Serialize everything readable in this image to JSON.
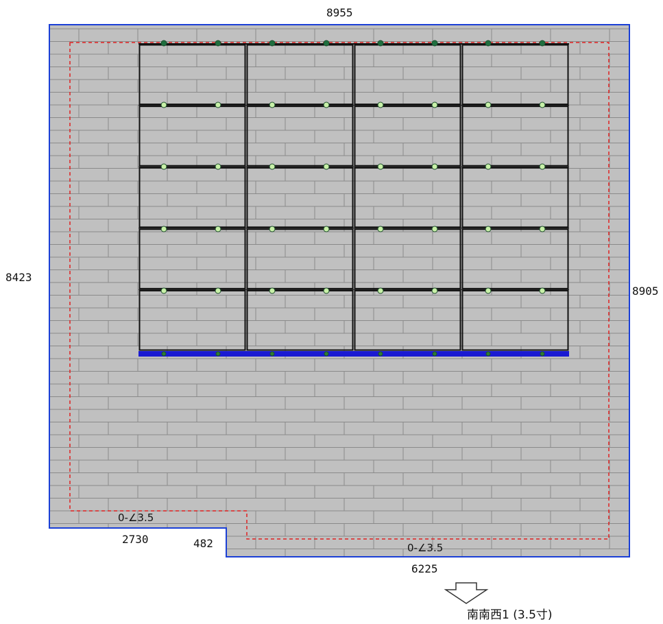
{
  "colors": {
    "roof_fill": "#c0c0c0",
    "tile_line": "#8a8a8a",
    "roof_outline": "#1a3fd6",
    "eave_line": "#e02020",
    "panel_frame": "#111111",
    "rail": "#1a1ad2",
    "bolt_top": "#1f6f3f",
    "bolt_light": "#c8f0a8"
  },
  "dimensions": {
    "top": "8955",
    "left": "8423",
    "right": "8905",
    "bottom_left": "2730",
    "step": "482",
    "bottom_right": "6225"
  },
  "slopes": {
    "left": "0-∠3.5",
    "right": "0-∠3.5"
  },
  "orientation": {
    "label": "南南西1 (3.5寸)",
    "icon": "down-arrow-icon"
  },
  "panel_array": {
    "columns": 4,
    "rows": 5
  }
}
